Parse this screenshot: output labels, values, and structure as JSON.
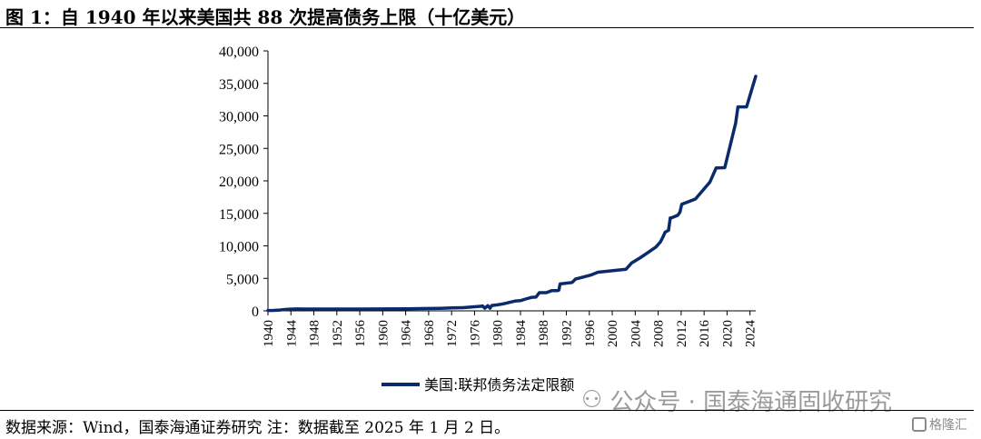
{
  "title": "图 1：自 1940 年以来美国共 88 次提高债务上限（十亿美元）",
  "source": "数据来源：Wind，国泰海通证券研究 注：数据截至 2025 年 1 月 2 日。",
  "watermark": {
    "icon": "wechat-icon",
    "text": "公众号 · 国泰海通固收研究"
  },
  "logo": {
    "icon": "gelonghui-logo-icon",
    "text": "格隆汇"
  },
  "colors": {
    "series": "#0b2a6b",
    "axis": "#000000"
  },
  "chart_data": {
    "type": "line",
    "title": "",
    "xlabel": "",
    "ylabel": "",
    "xlim": [
      1940,
      2025
    ],
    "ylim": [
      0,
      40000
    ],
    "grid": false,
    "legend_position": "bottom-center",
    "x_tick_labels": [
      "1940",
      "1944",
      "1948",
      "1952",
      "1956",
      "1960",
      "1964",
      "1968",
      "1972",
      "1976",
      "1980",
      "1984",
      "1988",
      "1992",
      "1996",
      "2000",
      "2004",
      "2008",
      "2012",
      "2016",
      "2020",
      "2024"
    ],
    "y_tick_labels": [
      "0",
      "5,000",
      "10,000",
      "15,000",
      "20,000",
      "25,000",
      "30,000",
      "35,000",
      "40,000"
    ],
    "series": [
      {
        "name": "美国:联邦债务法定限额",
        "x": [
          1940,
          1941,
          1942,
          1943,
          1944,
          1945,
          1946,
          1950,
          1954,
          1956,
          1960,
          1964,
          1968,
          1970,
          1972,
          1974,
          1976,
          1977,
          1977.4,
          1977.8,
          1978.3,
          1978.7,
          1979,
          1980,
          1981,
          1982,
          1983,
          1984,
          1984.9,
          1986,
          1986.7,
          1987.3,
          1988.5,
          1989.5,
          1990.5,
          1990.7,
          1990.9,
          1993,
          1993.6,
          1996.2,
          1997.5,
          2002.4,
          2003.4,
          2004.9,
          2006.2,
          2007.6,
          2008.4,
          2008.8,
          2009.2,
          2009.8,
          2010.1,
          2010.3,
          2011.4,
          2011.8,
          2012.1,
          2014.5,
          2017.0,
          2018.1,
          2019.6,
          2021.5,
          2021.9,
          2023.4,
          2025.0
        ],
        "y": [
          49,
          65,
          125,
          210,
          260,
          300,
          275,
          275,
          281,
          278,
          293,
          324,
          358,
          395,
          450,
          495,
          636,
          700,
          752,
          400,
          798,
          400,
          830,
          925,
          1079,
          1290,
          1490,
          1573,
          1824,
          2079,
          2111,
          2800,
          2800,
          3123,
          3123,
          3195,
          4145,
          4370,
          4900,
          5500,
          5950,
          6400,
          7384,
          8184,
          8965,
          9815,
          10615,
          11315,
          12104,
          12394,
          14294,
          14294,
          14694,
          15194,
          16394,
          17212,
          19808,
          21988,
          22030,
          28900,
          31381,
          31381,
          36100
        ]
      }
    ]
  }
}
